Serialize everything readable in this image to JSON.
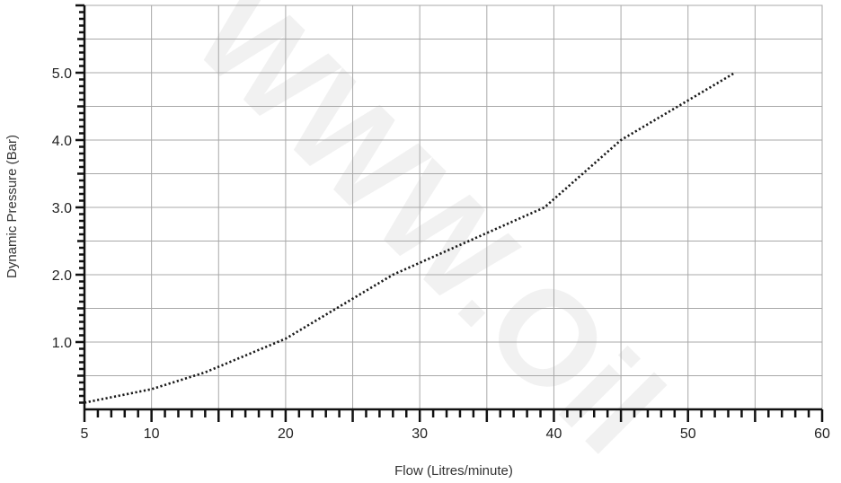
{
  "chart_data": {
    "type": "line",
    "xlabel": "Flow (Litres/minute)",
    "ylabel": "Dynamic Pressure (Bar)",
    "xlim": [
      5,
      60
    ],
    "ylim": [
      0,
      6
    ],
    "x_ticks": [
      5,
      10,
      20,
      30,
      40,
      50,
      60
    ],
    "x_tick_labels": [
      "5",
      "10",
      "20",
      "30",
      "40",
      "50",
      "60"
    ],
    "y_ticks": [
      1,
      2,
      3,
      4,
      5
    ],
    "y_tick_labels": [
      "1.0",
      "2.0",
      "3.0",
      "4.0",
      "5.0"
    ],
    "grid": true,
    "series": [
      {
        "line_style": "dotted",
        "color": "#1a1a1a",
        "x": [
          5,
          10,
          14,
          20,
          28,
          39.3,
          45,
          53.5
        ],
        "y": [
          0.1,
          0.3,
          0.55,
          1.05,
          2.0,
          3.0,
          4.0,
          5.0
        ]
      }
    ]
  },
  "watermark": "WWW.Oil"
}
